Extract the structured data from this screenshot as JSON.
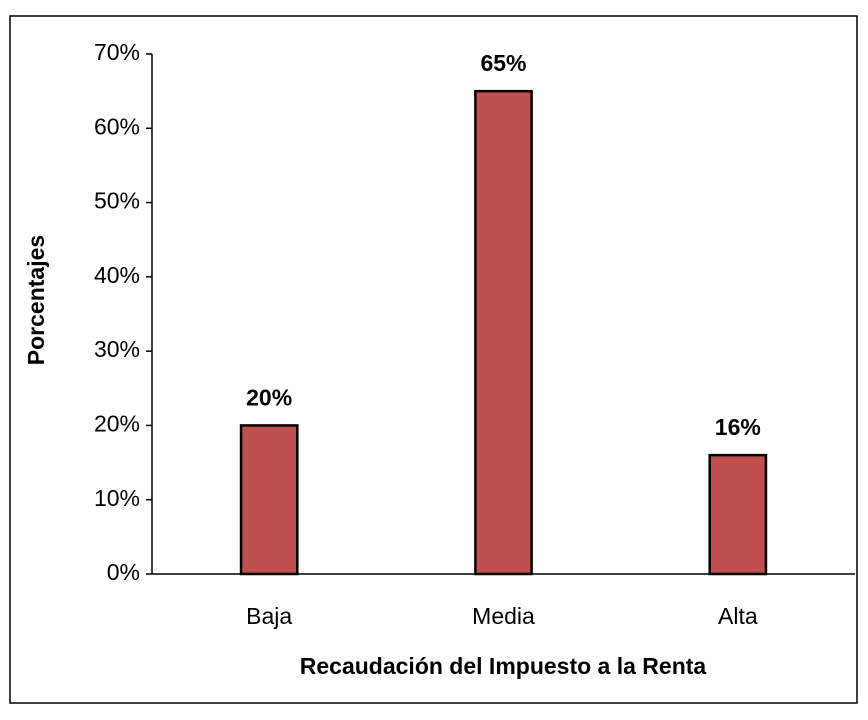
{
  "chart_data": {
    "type": "bar",
    "categories": [
      "Baja",
      "Media",
      "Alta"
    ],
    "values": [
      20,
      65,
      16
    ],
    "value_labels": [
      "20%",
      "65%",
      "16%"
    ],
    "color": "#c0504d",
    "xlabel": "Recaudación del Impuesto a la Renta",
    "ylabel": "Porcentajes",
    "ylim": [
      0,
      70
    ],
    "yticks": [
      {
        "value": 0,
        "label": "0%"
      },
      {
        "value": 10,
        "label": "10%"
      },
      {
        "value": 20,
        "label": "20%"
      },
      {
        "value": 30,
        "label": "30%"
      },
      {
        "value": 40,
        "label": "40%"
      },
      {
        "value": 50,
        "label": "50%"
      },
      {
        "value": 60,
        "label": "60%"
      },
      {
        "value": 70,
        "label": "70%"
      }
    ],
    "grid": false
  }
}
